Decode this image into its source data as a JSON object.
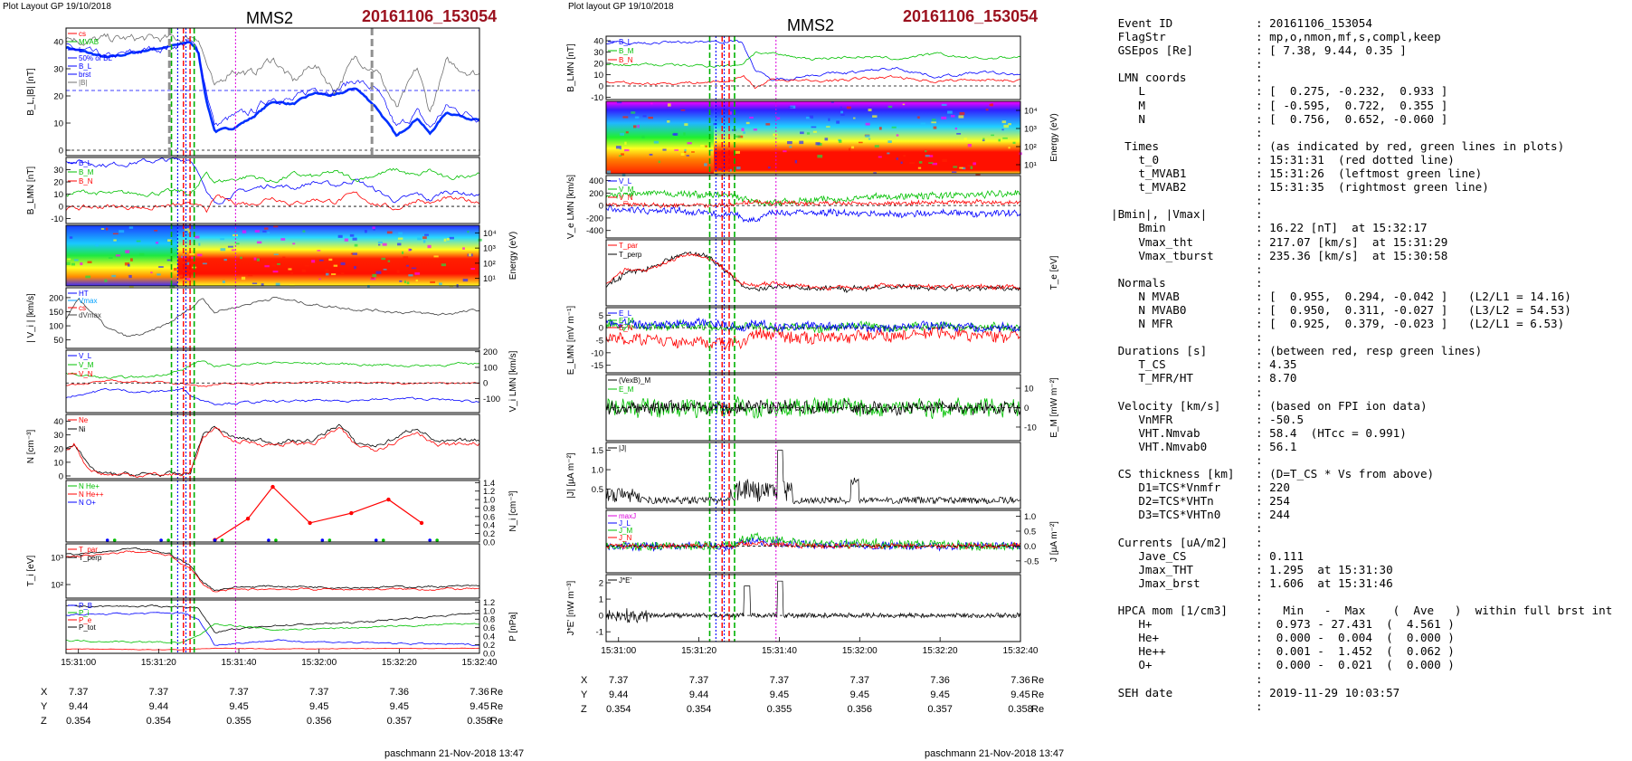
{
  "headers": {
    "left": {
      "layout": "Plot Layout GP 19/10/2018",
      "spacecraft": "MMS2",
      "event": "20161106_153054",
      "footer": "paschmann 21-Nov-2018 13:47"
    },
    "middle": {
      "layout": "Plot layout GP 19/10/2018",
      "spacecraft": "MMS2",
      "event": "20161106_153054",
      "footer": "paschmann 21-Nov-2018 13:47"
    }
  },
  "time_ticks": [
    "15:31:00",
    "15:31:20",
    "15:31:40",
    "15:32:00",
    "15:32:20",
    "15:32:40"
  ],
  "coords": [
    {
      "axis": "X",
      "values": [
        "7.37",
        "7.37",
        "7.37",
        "7.37",
        "7.36",
        "7.36"
      ],
      "unit": "Re"
    },
    {
      "axis": "Y",
      "values": [
        "9.44",
        "9.44",
        "9.45",
        "9.45",
        "9.45",
        "9.45"
      ],
      "unit": "Re"
    },
    {
      "axis": "Z",
      "values": [
        "0.354",
        "0.354",
        "0.355",
        "0.356",
        "0.357",
        "0.358"
      ],
      "unit": "Re"
    }
  ],
  "colors": {
    "event_title": "#9b111e",
    "L": "#0000ff",
    "M": "#00c000",
    "N": "#ff0000",
    "black": "#000000",
    "magenta": "#dd00dd",
    "grey": "#808080"
  },
  "chart_data": [
    {
      "type": "line",
      "panel": "left-1",
      "ylabel": "B_L,|B| [nT]",
      "yticks": [
        "0",
        "10",
        "20",
        "30",
        "40"
      ],
      "ylim": [
        -2,
        45
      ],
      "legend": [
        "cs",
        "MVAB",
        "L",
        "50% of BL",
        "B_L",
        "brst",
        "|B|"
      ]
    },
    {
      "type": "line",
      "panel": "left-2",
      "ylabel": "B_LMN [nT]",
      "yticks": [
        "-10",
        "0",
        "10",
        "20",
        "30"
      ],
      "ylim": [
        -14,
        40
      ],
      "legend": [
        "B_L",
        "B_M",
        "B_N"
      ]
    },
    {
      "type": "heatmap",
      "panel": "left-3",
      "ylabel": "Energy (eV)",
      "yticks": [
        "10^4",
        "10^3",
        "10^2",
        "10^1"
      ]
    },
    {
      "type": "line",
      "panel": "left-4",
      "ylabel": "| V_i | [km/s]",
      "yticks": [
        "50",
        "100",
        "150",
        "200"
      ],
      "ylim": [
        20,
        235
      ],
      "legend": [
        "HT",
        "Vmax",
        "cs",
        "dVmax"
      ]
    },
    {
      "type": "line",
      "panel": "left-5",
      "ylabel": "V_i LMN [km/s]",
      "yticks": [
        "-100",
        "0",
        "100",
        "200"
      ],
      "ylim": [
        -190,
        210
      ],
      "legend": [
        "V_L",
        "V_M",
        "V_N"
      ]
    },
    {
      "type": "line",
      "panel": "left-6",
      "ylabel": "N [cm^-3]",
      "yticks": [
        "0",
        "10",
        "20",
        "30",
        "40"
      ],
      "ylim": [
        -2,
        45
      ],
      "legend": [
        "Ne",
        "Ni"
      ]
    },
    {
      "type": "scatter",
      "panel": "left-7",
      "ylabel": "N_i [cm^-3]",
      "yticks": [
        "0.0",
        "0.2",
        "0.4",
        "0.6",
        "0.8",
        "1.0",
        "1.2",
        "1.4"
      ],
      "ylim": [
        0,
        1.45
      ],
      "legend": [
        "N He+",
        "N He++",
        "N O+"
      ],
      "series": [
        {
          "name": "N He++",
          "x": [
            0.36,
            0.44,
            0.5,
            0.59,
            0.69,
            0.78,
            0.86
          ],
          "values": [
            0.05,
            0.55,
            1.3,
            0.45,
            0.68,
            1.0,
            0.45
          ]
        }
      ]
    },
    {
      "type": "line",
      "panel": "left-8",
      "ylabel": "T_i [eV]",
      "yticks": [
        "10^2",
        "10^3"
      ],
      "legend": [
        "T_par",
        "T_perp"
      ]
    },
    {
      "type": "line",
      "panel": "left-9",
      "ylabel": "P [nPa]",
      "yticks": [
        "0.0",
        "0.2",
        "0.4",
        "0.6",
        "0.8",
        "1.0",
        "1.2"
      ],
      "ylim": [
        0,
        1.25
      ],
      "legend": [
        "P_B",
        "P_i",
        "P_e",
        "P_tot"
      ]
    },
    {
      "type": "line",
      "panel": "mid-1",
      "ylabel": "B_LMN [nT]",
      "yticks": [
        "-10",
        "0",
        "10",
        "20",
        "30",
        "40"
      ],
      "ylim": [
        -12,
        44
      ],
      "legend": [
        "B_L",
        "B_M",
        "B_N"
      ]
    },
    {
      "type": "heatmap",
      "panel": "mid-2",
      "ylabel": "Energy (eV)",
      "yticks": [
        "10^4",
        "10^3",
        "10^2",
        "10^1"
      ]
    },
    {
      "type": "line",
      "panel": "mid-3",
      "ylabel": "V_e LMN [km/s]",
      "yticks": [
        "-400",
        "-200",
        "0",
        "200",
        "400"
      ],
      "ylim": [
        -520,
        480
      ],
      "legend": [
        "V_L",
        "V_M",
        "V_N"
      ]
    },
    {
      "type": "line",
      "panel": "mid-4",
      "ylabel": "T_e [eV]",
      "legend": [
        "T_par",
        "T_perp"
      ]
    },
    {
      "type": "line",
      "panel": "mid-5",
      "ylabel": "E_LMN [mV m^-1]",
      "yticks": [
        "-15",
        "-10",
        "-5",
        "0",
        "5"
      ],
      "ylim": [
        -18,
        8
      ],
      "legend": [
        "E_L",
        "E_M",
        "E_N"
      ]
    },
    {
      "type": "line",
      "panel": "mid-6",
      "ylabel": "E_M [mV m^-2]",
      "yticks": [
        "-10",
        "0",
        "10"
      ],
      "ylim": [
        -17,
        17
      ],
      "legend": [
        "(VexB)_M",
        "E_M"
      ]
    },
    {
      "type": "line",
      "panel": "mid-7",
      "ylabel": "|J| [µA m^-2]",
      "yticks": [
        "0.5",
        "1.0",
        "1.5"
      ],
      "ylim": [
        0,
        1.7
      ],
      "legend": [
        "|J|"
      ]
    },
    {
      "type": "line",
      "panel": "mid-8",
      "ylabel": "J [µA m^-2]",
      "yticks": [
        "-0.5",
        "0.0",
        "0.5",
        "1.0"
      ],
      "ylim": [
        -0.9,
        1.2
      ],
      "legend": [
        "maxJ",
        "J_L",
        "J_M",
        "J_N"
      ]
    },
    {
      "type": "line",
      "panel": "mid-9",
      "ylabel": "J*E' [nW m^-3]",
      "yticks": [
        "-1",
        "0",
        "1",
        "2"
      ],
      "ylim": [
        -1.6,
        2.5
      ],
      "legend": [
        "J*E'"
      ]
    }
  ],
  "info": {
    "rows": [
      {
        "k": " Event ID",
        "v": "20161106_153054"
      },
      {
        "k": " FlagStr",
        "v": "mp,o,nmon,mf,s,compl,keep"
      },
      {
        "k": " GSEpos [Re]",
        "v": "[ 7.38, 9.44, 0.35 ]"
      },
      {
        "k": "",
        "v": ""
      },
      {
        "k": " LMN coords",
        "v": ""
      },
      {
        "k": "    L",
        "v": "[  0.275, -0.232,  0.933 ]"
      },
      {
        "k": "    M",
        "v": "[ -0.595,  0.722,  0.355 ]"
      },
      {
        "k": "    N",
        "v": "[  0.756,  0.652, -0.060 ]"
      },
      {
        "k": "",
        "v": ""
      },
      {
        "k": "  Times",
        "v": "(as indicated by red, green lines in plots)"
      },
      {
        "k": "    t_0",
        "v": "15:31:31  (red dotted line)"
      },
      {
        "k": "    t_MVAB1",
        "v": "15:31:26  (leftmost green line)"
      },
      {
        "k": "    t_MVAB2",
        "v": "15:31:35  (rightmost green line)"
      },
      {
        "k": "",
        "v": ""
      },
      {
        "k": "|Bmin|, |Vmax|",
        "v": ""
      },
      {
        "k": "    Bmin",
        "v": "16.22 [nT]  at 15:32:17"
      },
      {
        "k": "    Vmax_tht",
        "v": "217.07 [km/s]  at 15:31:29"
      },
      {
        "k": "    Vmax_tburst",
        "v": "235.36 [km/s]  at 15:30:58"
      },
      {
        "k": "",
        "v": ""
      },
      {
        "k": " Normals",
        "v": ""
      },
      {
        "k": "    N MVAB",
        "v": "[  0.955,  0.294, -0.042 ]   (L2/L1 = 14.16)"
      },
      {
        "k": "    N MVAB0",
        "v": "[  0.950,  0.311, -0.027 ]   (L3/L2 = 54.53)"
      },
      {
        "k": "    N MFR",
        "v": "[  0.925,  0.379, -0.023 ]   (L2/L1 = 6.53)"
      },
      {
        "k": "",
        "v": ""
      },
      {
        "k": " Durations [s]",
        "v": "(between red, resp green lines)"
      },
      {
        "k": "    T_CS",
        "v": "4.35"
      },
      {
        "k": "    T_MFR/HT",
        "v": "8.70"
      },
      {
        "k": "",
        "v": ""
      },
      {
        "k": " Velocity [km/s]",
        "v": "(based on FPI ion data)"
      },
      {
        "k": "    VnMFR",
        "v": "-50.5"
      },
      {
        "k": "    VHT.Nmvab",
        "v": "58.4  (HTcc = 0.991)"
      },
      {
        "k": "    VHT.Nmvab0",
        "v": "56.1"
      },
      {
        "k": "",
        "v": ""
      },
      {
        "k": " CS thickness [km]",
        "v": "(D=T_CS * Vs from above)"
      },
      {
        "k": "    D1=TCS*Vnmfr",
        "v": "220"
      },
      {
        "k": "    D2=TCS*VHTn",
        "v": "254"
      },
      {
        "k": "    D3=TCS*VHTn0",
        "v": "244"
      },
      {
        "k": "",
        "v": ""
      },
      {
        "k": " Currents [uA/m2]",
        "v": ""
      },
      {
        "k": "    Jave_CS",
        "v": "0.111"
      },
      {
        "k": "    Jmax_THT",
        "v": "1.295  at 15:31:30"
      },
      {
        "k": "    Jmax_brst",
        "v": "1.606  at 15:31:46"
      },
      {
        "k": "",
        "v": ""
      },
      {
        "k": " HPCA mom [1/cm3]",
        "v": "  Min   -  Max    (  Ave   )  within full brst int"
      },
      {
        "k": "    H+",
        "v": " 0.973 - 27.431  (  4.561 )"
      },
      {
        "k": "    He+",
        "v": " 0.000 -  0.004  (  0.000 )"
      },
      {
        "k": "    He++",
        "v": " 0.001 -  1.452  (  0.062 )"
      },
      {
        "k": "    O+",
        "v": " 0.000 -  0.021  (  0.000 )"
      },
      {
        "k": "",
        "v": ""
      },
      {
        "k": " SEH date",
        "v": "2019-11-29 10:03:57"
      },
      {
        "k": "",
        "v": ""
      }
    ]
  }
}
